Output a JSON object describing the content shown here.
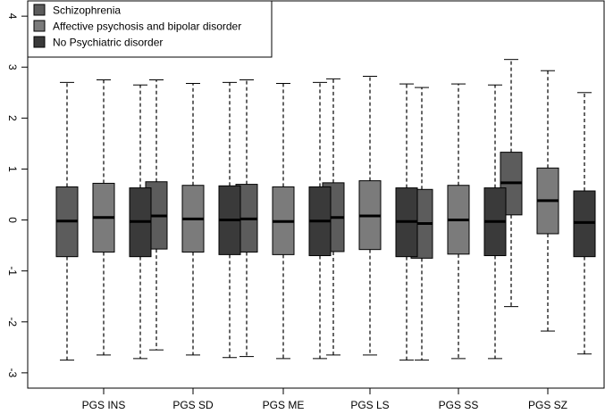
{
  "chart_data": {
    "type": "boxplot",
    "title": "",
    "xlabel": "",
    "ylabel": "",
    "ylim": [
      -3.3,
      4.3
    ],
    "yticks": [
      -3,
      -2,
      -1,
      0,
      1,
      2,
      3,
      4
    ],
    "categories": [
      "PGS INS",
      "PGS SD",
      "PGS ME",
      "PGS LS",
      "PGS SS",
      "PGS SZ"
    ],
    "legend": {
      "placement": "top-left"
    },
    "series": [
      {
        "name": "Schizophrenia",
        "color": "#5c5c5c",
        "boxes": [
          {
            "whisker_low": -2.75,
            "q1": -0.72,
            "median": -0.02,
            "q3": 0.65,
            "whisker_high": 2.7
          },
          {
            "whisker_low": -2.55,
            "q1": -0.57,
            "median": 0.08,
            "q3": 0.75,
            "whisker_high": 2.75
          },
          {
            "whisker_low": -2.68,
            "q1": -0.63,
            "median": 0.02,
            "q3": 0.7,
            "whisker_high": 2.75
          },
          {
            "whisker_low": -2.65,
            "q1": -0.62,
            "median": 0.05,
            "q3": 0.73,
            "whisker_high": 2.77
          },
          {
            "whisker_low": -2.75,
            "q1": -0.75,
            "median": -0.07,
            "q3": 0.6,
            "whisker_high": 2.6
          },
          {
            "whisker_low": -1.7,
            "q1": 0.1,
            "median": 0.73,
            "q3": 1.33,
            "whisker_high": 3.15
          }
        ]
      },
      {
        "name": "Affective psychosis and bipolar disorder",
        "color": "#7b7b7b",
        "boxes": [
          {
            "whisker_low": -2.65,
            "q1": -0.63,
            "median": 0.05,
            "q3": 0.72,
            "whisker_high": 2.75
          },
          {
            "whisker_low": -2.65,
            "q1": -0.63,
            "median": 0.02,
            "q3": 0.68,
            "whisker_high": 2.68
          },
          {
            "whisker_low": -2.72,
            "q1": -0.68,
            "median": -0.03,
            "q3": 0.65,
            "whisker_high": 2.68
          },
          {
            "whisker_low": -2.65,
            "q1": -0.58,
            "median": 0.08,
            "q3": 0.77,
            "whisker_high": 2.82
          },
          {
            "whisker_low": -2.72,
            "q1": -0.67,
            "median": 0.0,
            "q3": 0.68,
            "whisker_high": 2.67
          },
          {
            "whisker_low": -2.18,
            "q1": -0.27,
            "median": 0.38,
            "q3": 1.02,
            "whisker_high": 2.93
          }
        ]
      },
      {
        "name": "No Psychiatric disorder",
        "color": "#3a3a3a",
        "boxes": [
          {
            "whisker_low": -2.72,
            "q1": -0.72,
            "median": -0.03,
            "q3": 0.63,
            "whisker_high": 2.65
          },
          {
            "whisker_low": -2.7,
            "q1": -0.68,
            "median": 0.0,
            "q3": 0.67,
            "whisker_high": 2.7
          },
          {
            "whisker_low": -2.72,
            "q1": -0.7,
            "median": -0.02,
            "q3": 0.65,
            "whisker_high": 2.7
          },
          {
            "whisker_low": -2.75,
            "q1": -0.72,
            "median": -0.03,
            "q3": 0.63,
            "whisker_high": 2.67
          },
          {
            "whisker_low": -2.72,
            "q1": -0.7,
            "median": -0.03,
            "q3": 0.63,
            "whisker_high": 2.65
          },
          {
            "whisker_low": -2.63,
            "q1": -0.72,
            "median": -0.05,
            "q3": 0.57,
            "whisker_high": 2.5
          }
        ]
      }
    ]
  }
}
